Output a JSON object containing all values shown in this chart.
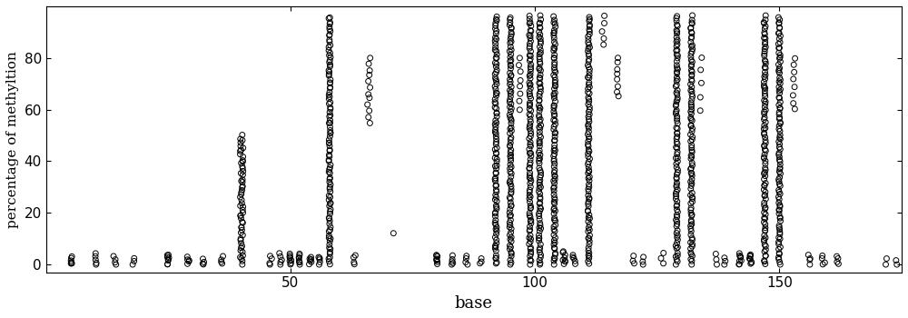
{
  "title": "",
  "xlabel": "base",
  "ylabel": "percentage of methyltion",
  "xlim": [
    0,
    175
  ],
  "ylim": [
    -3,
    100
  ],
  "yticks": [
    0,
    20,
    40,
    60,
    80
  ],
  "xticks": [
    50,
    100,
    150
  ],
  "marker_size": 18,
  "marker_facecolor": "none",
  "marker_edgecolor": "black",
  "marker_linewidth": 0.7,
  "background_color": "white",
  "columns": [
    {
      "x": 5,
      "n": 6,
      "ymin": 0,
      "ymax": 3,
      "xjitter": 0.3
    },
    {
      "x": 10,
      "n": 5,
      "ymin": 0,
      "ymax": 4,
      "xjitter": 0.3
    },
    {
      "x": 14,
      "n": 4,
      "ymin": 0,
      "ymax": 3,
      "xjitter": 0.3
    },
    {
      "x": 18,
      "n": 3,
      "ymin": 0,
      "ymax": 2,
      "xjitter": 0.3
    },
    {
      "x": 25,
      "n": 8,
      "ymin": 0,
      "ymax": 4,
      "xjitter": 0.3
    },
    {
      "x": 29,
      "n": 5,
      "ymin": 0,
      "ymax": 3,
      "xjitter": 0.3
    },
    {
      "x": 32,
      "n": 4,
      "ymin": 0,
      "ymax": 2,
      "xjitter": 0.3
    },
    {
      "x": 36,
      "n": 4,
      "ymin": 0,
      "ymax": 3,
      "xjitter": 0.3
    },
    {
      "x": 40,
      "n": 55,
      "ymin": 0,
      "ymax": 50,
      "xjitter": 0.3
    },
    {
      "x": 46,
      "n": 4,
      "ymin": 0,
      "ymax": 3,
      "xjitter": 0.3
    },
    {
      "x": 48,
      "n": 5,
      "ymin": 0,
      "ymax": 4,
      "xjitter": 0.3
    },
    {
      "x": 50,
      "n": 8,
      "ymin": 0,
      "ymax": 4,
      "xjitter": 0.3
    },
    {
      "x": 52,
      "n": 8,
      "ymin": 0,
      "ymax": 4,
      "xjitter": 0.3
    },
    {
      "x": 54,
      "n": 6,
      "ymin": 0,
      "ymax": 3,
      "xjitter": 0.3
    },
    {
      "x": 56,
      "n": 5,
      "ymin": 0,
      "ymax": 3,
      "xjitter": 0.3
    },
    {
      "x": 58,
      "n": 100,
      "ymin": 0,
      "ymax": 96,
      "xjitter": 0.2
    },
    {
      "x": 63,
      "n": 4,
      "ymin": 0,
      "ymax": 4,
      "xjitter": 0.3
    },
    {
      "x": 66,
      "n": 12,
      "ymin": 55,
      "ymax": 80,
      "xjitter": 0.3
    },
    {
      "x": 71,
      "n": 1,
      "ymin": 12,
      "ymax": 14,
      "xjitter": 0.1
    },
    {
      "x": 80,
      "n": 8,
      "ymin": 0,
      "ymax": 4,
      "xjitter": 0.3
    },
    {
      "x": 83,
      "n": 5,
      "ymin": 0,
      "ymax": 3,
      "xjitter": 0.3
    },
    {
      "x": 86,
      "n": 4,
      "ymin": 0,
      "ymax": 3,
      "xjitter": 0.3
    },
    {
      "x": 89,
      "n": 3,
      "ymin": 0,
      "ymax": 2,
      "xjitter": 0.3
    },
    {
      "x": 92,
      "n": 100,
      "ymin": 0,
      "ymax": 96,
      "xjitter": 0.2
    },
    {
      "x": 95,
      "n": 100,
      "ymin": 0,
      "ymax": 96,
      "xjitter": 0.2
    },
    {
      "x": 97,
      "n": 8,
      "ymin": 60,
      "ymax": 80,
      "xjitter": 0.3
    },
    {
      "x": 99,
      "n": 100,
      "ymin": 0,
      "ymax": 96,
      "xjitter": 0.2
    },
    {
      "x": 101,
      "n": 100,
      "ymin": 0,
      "ymax": 96,
      "xjitter": 0.2
    },
    {
      "x": 104,
      "n": 100,
      "ymin": 0,
      "ymax": 96,
      "xjitter": 0.2
    },
    {
      "x": 106,
      "n": 8,
      "ymin": 0,
      "ymax": 5,
      "xjitter": 0.3
    },
    {
      "x": 108,
      "n": 5,
      "ymin": 0,
      "ymax": 4,
      "xjitter": 0.3
    },
    {
      "x": 111,
      "n": 100,
      "ymin": 0,
      "ymax": 96,
      "xjitter": 0.2
    },
    {
      "x": 114,
      "n": 5,
      "ymin": 85,
      "ymax": 96,
      "xjitter": 0.3
    },
    {
      "x": 117,
      "n": 8,
      "ymin": 65,
      "ymax": 80,
      "xjitter": 0.3
    },
    {
      "x": 120,
      "n": 3,
      "ymin": 0,
      "ymax": 3,
      "xjitter": 0.3
    },
    {
      "x": 122,
      "n": 3,
      "ymin": 0,
      "ymax": 3,
      "xjitter": 0.3
    },
    {
      "x": 126,
      "n": 3,
      "ymin": 0,
      "ymax": 4,
      "xjitter": 0.3
    },
    {
      "x": 129,
      "n": 100,
      "ymin": 0,
      "ymax": 96,
      "xjitter": 0.2
    },
    {
      "x": 132,
      "n": 100,
      "ymin": 0,
      "ymax": 96,
      "xjitter": 0.2
    },
    {
      "x": 134,
      "n": 5,
      "ymin": 60,
      "ymax": 80,
      "xjitter": 0.3
    },
    {
      "x": 137,
      "n": 3,
      "ymin": 0,
      "ymax": 4,
      "xjitter": 0.3
    },
    {
      "x": 139,
      "n": 3,
      "ymin": 0,
      "ymax": 3,
      "xjitter": 0.3
    },
    {
      "x": 142,
      "n": 8,
      "ymin": 0,
      "ymax": 4,
      "xjitter": 0.3
    },
    {
      "x": 144,
      "n": 8,
      "ymin": 0,
      "ymax": 4,
      "xjitter": 0.3
    },
    {
      "x": 147,
      "n": 100,
      "ymin": 0,
      "ymax": 96,
      "xjitter": 0.2
    },
    {
      "x": 150,
      "n": 100,
      "ymin": 0,
      "ymax": 96,
      "xjitter": 0.2
    },
    {
      "x": 153,
      "n": 8,
      "ymin": 60,
      "ymax": 80,
      "xjitter": 0.3
    },
    {
      "x": 156,
      "n": 4,
      "ymin": 0,
      "ymax": 4,
      "xjitter": 0.3
    },
    {
      "x": 159,
      "n": 4,
      "ymin": 0,
      "ymax": 3,
      "xjitter": 0.3
    },
    {
      "x": 162,
      "n": 4,
      "ymin": 0,
      "ymax": 3,
      "xjitter": 0.3
    },
    {
      "x": 172,
      "n": 2,
      "ymin": 0,
      "ymax": 2,
      "xjitter": 0.3
    },
    {
      "x": 174,
      "n": 2,
      "ymin": 0,
      "ymax": 2,
      "xjitter": 0.3
    }
  ]
}
